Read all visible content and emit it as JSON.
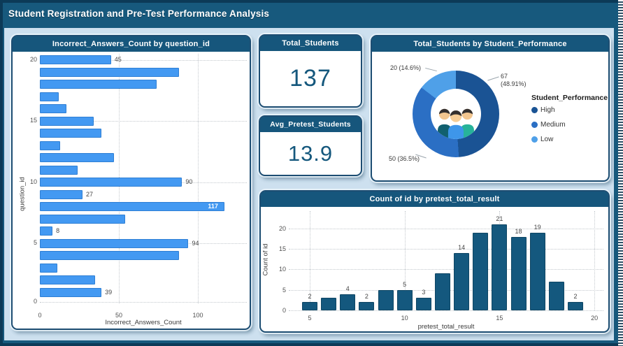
{
  "title": "Student Registration and Pre-Test Performance Analysis",
  "cards": [
    {
      "label": "Total_Students",
      "value": "137"
    },
    {
      "label": "Avg_Pretest_Students",
      "value": "13.9"
    }
  ],
  "chart_data": [
    {
      "type": "bar",
      "orientation": "horizontal",
      "title": "Incorrect_Answers_Count by question_id",
      "xlabel": "Incorrect_Answers_Count",
      "ylabel": "question_id",
      "categories": [
        20,
        19,
        18,
        17,
        16,
        15,
        14,
        13,
        12,
        11,
        10,
        9,
        8,
        7,
        6,
        5,
        4,
        3,
        2,
        1
      ],
      "values": [
        45,
        88,
        74,
        12,
        17,
        34,
        39,
        13,
        47,
        24,
        90,
        27,
        117,
        54,
        8,
        94,
        88,
        11,
        35,
        39
      ],
      "data_labels": [
        45,
        null,
        null,
        null,
        null,
        null,
        null,
        null,
        null,
        null,
        90,
        27,
        117,
        null,
        8,
        94,
        null,
        null,
        null,
        39
      ],
      "xticks": [
        0,
        50,
        100
      ],
      "yticks": [
        20,
        15,
        10,
        5,
        0
      ],
      "xlim": [
        0,
        131
      ],
      "bar_color": "#4399f2",
      "grid": true
    },
    {
      "type": "pie",
      "variant": "donut",
      "title": "Total_Students by Student_Performance",
      "legend_title": "Student_Performance",
      "legend_position": "right",
      "center_icon": "students-icon",
      "slices": [
        {
          "name": "High",
          "value": 67,
          "pct": "48.91%",
          "label": "67 (48.91%)",
          "color": "#1a5394"
        },
        {
          "name": "Medium",
          "value": 50,
          "pct": "36.5%",
          "label": "50 (36.5%)",
          "color": "#2b6fc4"
        },
        {
          "name": "Low",
          "value": 20,
          "pct": "14.6%",
          "label": "20 (14.6%)",
          "color": "#4fa0e8"
        }
      ]
    },
    {
      "type": "bar",
      "orientation": "vertical",
      "title": "Count of id by pretest_total_result",
      "xlabel": "pretest_total_result",
      "ylabel": "Count of id",
      "x": [
        5,
        6,
        7,
        8,
        9,
        10,
        11,
        12,
        13,
        14,
        15,
        16,
        17,
        18,
        19
      ],
      "values": [
        2,
        3,
        4,
        2,
        5,
        5,
        3,
        9,
        14,
        19,
        21,
        18,
        19,
        7,
        2
      ],
      "data_labels": [
        2,
        null,
        4,
        2,
        null,
        5,
        3,
        null,
        14,
        null,
        21,
        18,
        19,
        null,
        2
      ],
      "xticks": [
        5,
        10,
        15,
        20
      ],
      "yticks": [
        0,
        5,
        10,
        15,
        20
      ],
      "ylim": [
        0,
        22
      ],
      "bar_color": "#14587e",
      "grid": true
    }
  ],
  "colors": {
    "frame": "#0c3a57",
    "band": "#17597d",
    "canvas": "#cde0ef",
    "panel_border": "#1d4d72",
    "header_bg": "#16567c",
    "card_value": "#15587d"
  }
}
